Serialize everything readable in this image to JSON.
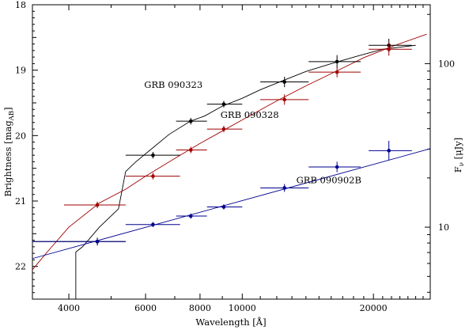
{
  "chart_data": {
    "type": "scatter",
    "xscale": "log",
    "xlabel": "Wavelength [Å]",
    "ylabel": "Brightness [mag",
    "ylabel_sub": "AB",
    "ylabel_close": "]",
    "y2label": "F",
    "y2label_sub": "ν",
    "y2label_unit": " [μJy]",
    "xlim": [
      3300,
      27000
    ],
    "ylim": [
      22.5,
      18.0
    ],
    "y_inverted": true,
    "x_ticks": [
      4000,
      6000,
      8000,
      10000,
      20000
    ],
    "x_tick_labels": [
      "4000",
      "6000",
      "8000",
      "10000",
      "20000"
    ],
    "y_ticks": [
      18,
      19,
      20,
      21,
      22
    ],
    "y_tick_labels": [
      "18",
      "19",
      "20",
      "21",
      "22"
    ],
    "y2_ticks_mag": [
      18.9,
      21.4
    ],
    "y2_tick_labels": [
      "100",
      "10"
    ],
    "series": [
      {
        "name": "GRB 090323",
        "color": "#000000",
        "points": [
          {
            "x": 4650,
            "xerr": [
              3300,
              5400
            ],
            "y": 21.62,
            "yerr": 0.06
          },
          {
            "x": 6240,
            "xerr": [
              5400,
              7200
            ],
            "y": 20.3,
            "yerr": 0.05
          },
          {
            "x": 7620,
            "xerr": [
              7050,
              8300
            ],
            "y": 19.78,
            "yerr": 0.05
          },
          {
            "x": 9070,
            "xerr": [
              8300,
              10000
            ],
            "y": 19.52,
            "yerr": 0.05
          },
          {
            "x": 12500,
            "xerr": [
              11000,
              14200
            ],
            "y": 19.18,
            "yerr": 0.08
          },
          {
            "x": 16500,
            "xerr": [
              14200,
              18700
            ],
            "y": 18.87,
            "yerr": 0.1
          },
          {
            "x": 21700,
            "xerr": [
              19500,
              24500
            ],
            "y": 18.62,
            "yerr": 0.1
          }
        ],
        "model": [
          [
            4150,
            22.5
          ],
          [
            4150,
            22.1
          ],
          [
            4150,
            21.78
          ],
          [
            4300,
            21.7
          ],
          [
            4700,
            21.4
          ],
          [
            5200,
            21.12
          ],
          [
            5400,
            20.55
          ],
          [
            5700,
            20.4
          ],
          [
            6200,
            20.2
          ],
          [
            6800,
            19.98
          ],
          [
            7600,
            19.78
          ],
          [
            8200,
            19.7
          ],
          [
            9000,
            19.55
          ],
          [
            10000,
            19.43
          ],
          [
            11000,
            19.3
          ],
          [
            12500,
            19.15
          ],
          [
            14000,
            19.02
          ],
          [
            16000,
            18.9
          ],
          [
            18500,
            18.78
          ],
          [
            21000,
            18.68
          ],
          [
            25000,
            18.62
          ]
        ]
      },
      {
        "name": "GRB 090328",
        "color": "#a00000",
        "points": [
          {
            "x": 4650,
            "xerr": [
              3900,
              5400
            ],
            "y": 21.06,
            "yerr": 0.05
          },
          {
            "x": 6240,
            "xerr": [
              5400,
              7200
            ],
            "y": 20.62,
            "yerr": 0.05
          },
          {
            "x": 7620,
            "xerr": [
              7050,
              8300
            ],
            "y": 20.22,
            "yerr": 0.05
          },
          {
            "x": 9070,
            "xerr": [
              8300,
              10000
            ],
            "y": 19.9,
            "yerr": 0.05
          },
          {
            "x": 12500,
            "xerr": [
              11000,
              14200
            ],
            "y": 19.45,
            "yerr": 0.08
          },
          {
            "x": 16500,
            "xerr": [
              14200,
              18700
            ],
            "y": 19.03,
            "yerr": 0.08
          },
          {
            "x": 21700,
            "xerr": [
              19500,
              24500
            ],
            "y": 18.68,
            "yerr": 0.1
          }
        ],
        "model": [
          [
            3300,
            22.05
          ],
          [
            3600,
            21.75
          ],
          [
            4000,
            21.4
          ],
          [
            4700,
            21.03
          ],
          [
            5400,
            20.82
          ],
          [
            6000,
            20.62
          ],
          [
            7000,
            20.35
          ],
          [
            8000,
            20.12
          ],
          [
            9000,
            19.93
          ],
          [
            10000,
            19.76
          ],
          [
            12000,
            19.47
          ],
          [
            14000,
            19.24
          ],
          [
            16500,
            19.01
          ],
          [
            19000,
            18.81
          ],
          [
            22000,
            18.64
          ],
          [
            26500,
            18.45
          ]
        ]
      },
      {
        "name": "GRB 090902B",
        "color": "#000090",
        "points": [
          {
            "x": 4650,
            "xerr": [
              3300,
              5400
            ],
            "y": 21.62,
            "yerr": 0.05
          },
          {
            "x": 6240,
            "xerr": [
              5400,
              7200
            ],
            "y": 21.36,
            "yerr": 0.04
          },
          {
            "x": 7620,
            "xerr": [
              7050,
              8300
            ],
            "y": 21.23,
            "yerr": 0.04
          },
          {
            "x": 9070,
            "xerr": [
              8300,
              10000
            ],
            "y": 21.09,
            "yerr": 0.04
          },
          {
            "x": 12500,
            "xerr": [
              11000,
              14200
            ],
            "y": 20.8,
            "yerr": 0.06
          },
          {
            "x": 16500,
            "xerr": [
              14200,
              18700
            ],
            "y": 20.48,
            "yerr": 0.08
          },
          {
            "x": 21700,
            "xerr": [
              19500,
              24500
            ],
            "y": 20.23,
            "yerr": 0.15
          }
        ],
        "model": [
          [
            3300,
            21.88
          ],
          [
            27000,
            20.2
          ]
        ]
      }
    ],
    "annotations": [
      {
        "text": "GRB 090323",
        "x": 6950,
        "y": 19.27
      },
      {
        "text": "GRB 090328",
        "x": 10400,
        "y": 19.73
      },
      {
        "text": "GRB 090902B",
        "x": 15800,
        "y": 20.73
      }
    ]
  }
}
